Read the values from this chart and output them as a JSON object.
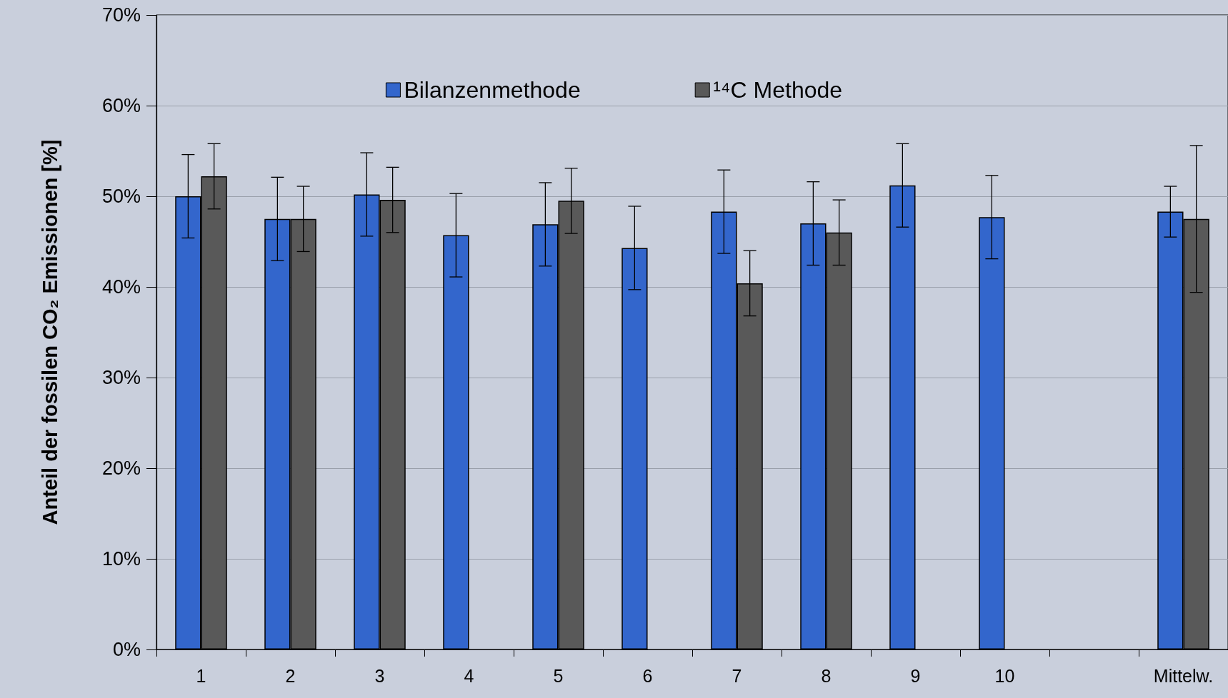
{
  "chart_data": {
    "type": "bar",
    "ylabel": "Anteil der fossilen CO₂ Emissionen [%]",
    "categories": [
      "1",
      "2",
      "3",
      "4",
      "5",
      "6",
      "7",
      "8",
      "9",
      "10",
      null,
      "Mittelw."
    ],
    "series": [
      {
        "name": "Bilanzenmethode",
        "color": "#3366cc",
        "values": [
          50.0,
          47.5,
          50.2,
          45.7,
          46.9,
          44.3,
          48.3,
          47.0,
          51.2,
          47.7,
          null,
          48.3
        ],
        "errors": [
          4.6,
          4.6,
          4.6,
          4.6,
          4.6,
          4.6,
          4.6,
          4.6,
          4.6,
          4.6,
          null,
          2.8
        ]
      },
      {
        "name": "¹⁴C Methode",
        "color": "#595959",
        "values": [
          52.2,
          47.5,
          49.6,
          null,
          49.5,
          null,
          40.4,
          46.0,
          null,
          null,
          null,
          47.5
        ],
        "errors": [
          3.6,
          3.6,
          3.6,
          null,
          3.6,
          null,
          3.6,
          3.6,
          null,
          null,
          null,
          8.1
        ]
      }
    ],
    "ylim": [
      0,
      70
    ],
    "yticks": [
      {
        "value": 0,
        "label": "0%"
      },
      {
        "value": 10,
        "label": "10%"
      },
      {
        "value": 20,
        "label": "20%"
      },
      {
        "value": 30,
        "label": "30%"
      },
      {
        "value": 40,
        "label": "40%"
      },
      {
        "value": 50,
        "label": "50%"
      },
      {
        "value": 60,
        "label": "60%"
      },
      {
        "value": 70,
        "label": "70%"
      }
    ],
    "grid": "y",
    "legend": "top"
  }
}
